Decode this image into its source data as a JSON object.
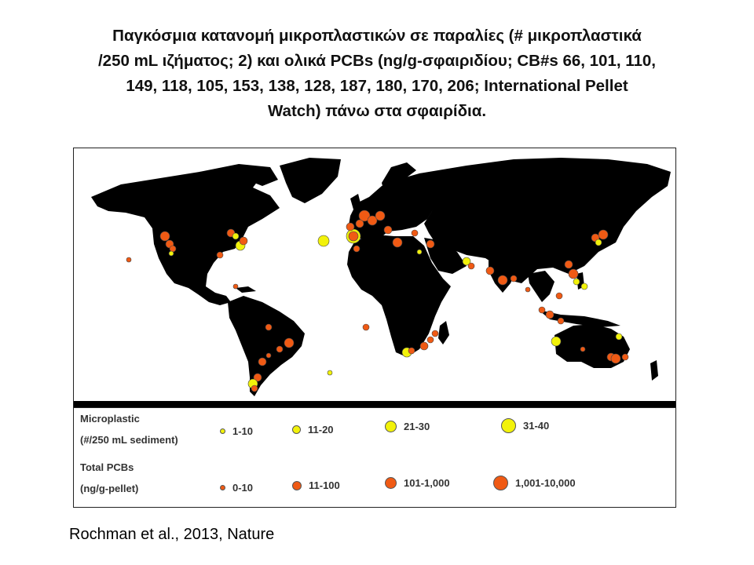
{
  "title": {
    "line1": "Παγκόσμια κατανομή μικροπλαστικών σε παραλίες (# μικροπλαστικά",
    "line2": "/250 mL ιζήματος; 2) και ολικά PCBs (ng/g-σφαιριδίου; CB#s 66, 101, 110,",
    "line3": "149, 118, 105, 153, 138, 128, 187, 180, 170, 206; International Pellet",
    "line4": "Watch) πάνω στα σφαιρίδια."
  },
  "legend": {
    "microplastic_label_1": "Microplastic",
    "microplastic_label_2": "(#/250 mL sediment)",
    "microplastic_items": [
      {
        "label": "1-10"
      },
      {
        "label": "11-20"
      },
      {
        "label": "21-30"
      },
      {
        "label": "31-40"
      }
    ],
    "pcb_label_1": "Total PCBs",
    "pcb_label_2": "(ng/g-pellet)",
    "pcb_items": [
      {
        "label": "0-10"
      },
      {
        "label": "11-100"
      },
      {
        "label": "101-1,000"
      },
      {
        "label": "1,001-10,000"
      }
    ]
  },
  "colors": {
    "microplastic": "#f2f20a",
    "pcb": "#f05a14",
    "land": "#000000",
    "ocean": "#ffffff"
  },
  "citation": "Rochman et al., 2013, Nature"
}
